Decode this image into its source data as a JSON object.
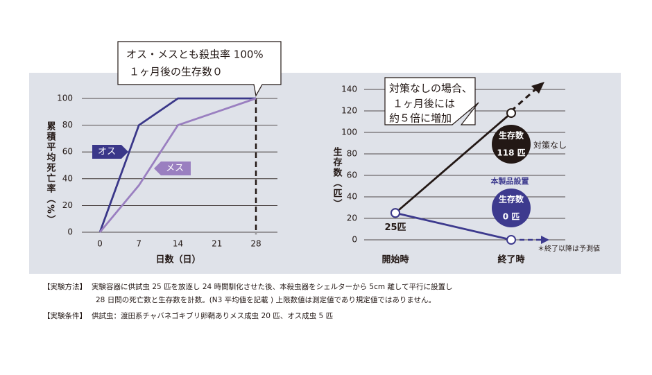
{
  "chart_data": [
    {
      "type": "line",
      "x": [
        0,
        7,
        14,
        21,
        28
      ],
      "xlim": [
        0,
        28
      ],
      "xticks": [
        0,
        7,
        14,
        21,
        28
      ],
      "ylim": [
        0,
        100
      ],
      "yticks": [
        0,
        20,
        40,
        60,
        80,
        100
      ],
      "grid": true,
      "xlabel": "日数（日）",
      "ylabel": "累積平均死亡率（%）",
      "series": [
        {
          "name": "オス",
          "color": "#3a3789",
          "values": [
            0,
            80,
            100,
            100,
            100
          ]
        },
        {
          "name": "メス",
          "color": "#9a7fc0",
          "values": [
            0,
            35,
            80,
            90,
            100
          ]
        }
      ],
      "callout": [
        "オス・メスとも殺虫率 100%",
        "１ヶ月後の生存数０"
      ]
    },
    {
      "type": "line",
      "categories": [
        "開始時",
        "終了時"
      ],
      "ylim": [
        0,
        140
      ],
      "yticks": [
        0,
        20,
        40,
        60,
        80,
        100,
        120,
        140
      ],
      "grid": true,
      "ylabel": "生存数（匹）",
      "series": [
        {
          "name": "対策なし",
          "color": "#231815",
          "values": [
            25,
            118
          ],
          "value_labels": [
            "25匹",
            "118 匹"
          ]
        },
        {
          "name": "本製品設置",
          "color": "#3d3a8e",
          "values": [
            25,
            0
          ],
          "value_labels": [
            null,
            "0 匹"
          ]
        }
      ],
      "badge_label": "生存数",
      "callout": [
        "対策なしの場合、",
        "１ヶ月後には",
        "約５倍に増加"
      ],
      "note": "＊終了以降は予測値"
    }
  ],
  "notes": [
    {
      "label": "【実験方法】",
      "lines": [
        "実験容器に供試虫 25 匹を放逐し 24 時間馴化させた後、本殺虫器をシェルターから 5cm 離して平行に設置し",
        "28 日間の死亡数と生存数を計数。(N3 平均値を記載 ) 上限数値は測定値であり規定値ではありません。"
      ]
    },
    {
      "label": "【実験条件】",
      "lines": [
        "供試虫：渡田系チャバネゴキブリ卵鞘ありメス成虫 20 匹、オス成虫 5 匹"
      ]
    }
  ]
}
